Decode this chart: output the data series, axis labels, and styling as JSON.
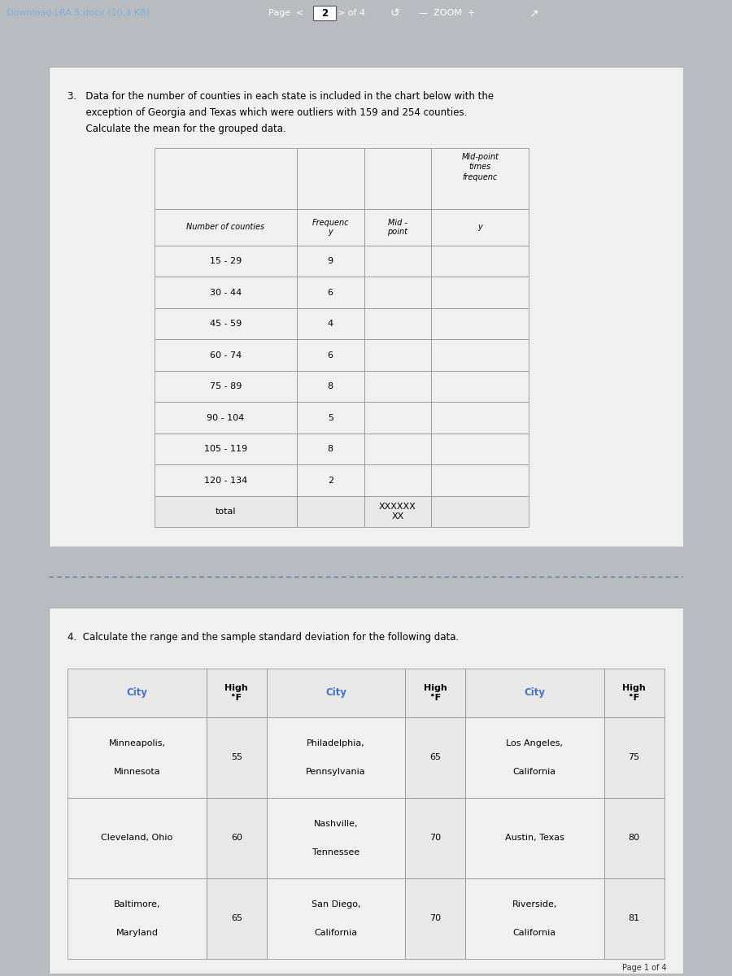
{
  "page_bg": "#b8bcc0",
  "panel_bg": "#f0f0f0",
  "panel_bg2": "#f0f0f0",
  "toolbar_bg": "#1e2530",
  "toolbar_text": "Download LRA 5.docx (20.3 KB)",
  "question3_lines": [
    "3.   Data for the number of counties in each state is included in the chart below with the",
    "      exception of Georgia and Texas which were outliers with 159 and 254 counties.",
    "      Calculate the mean for the grouped data."
  ],
  "question4_text": "4.  Calculate the range and the sample standard deviation for the following data.",
  "table1_col_labels": [
    "Number of counties",
    "Frequenc\ny",
    "Mid -\npoint",
    "Mid-point\ntimes\nfrequenc\ny"
  ],
  "table1_rows": [
    [
      "15 - 29",
      "9",
      "",
      ""
    ],
    [
      "30 - 44",
      "6",
      "",
      ""
    ],
    [
      "45 - 59",
      "4",
      "",
      ""
    ],
    [
      "60 - 74",
      "6",
      "",
      ""
    ],
    [
      "75 - 89",
      "8",
      "",
      ""
    ],
    [
      "90 - 104",
      "5",
      "",
      ""
    ],
    [
      "105 - 119",
      "8",
      "",
      ""
    ],
    [
      "120 - 134",
      "2",
      "",
      ""
    ],
    [
      "total",
      "",
      "XXXXXX\nXX",
      ""
    ]
  ],
  "table2_header": [
    "City",
    "High\n°F",
    "City",
    "High\n°F",
    "City",
    "High\n°F"
  ],
  "table2_rows": [
    [
      "Minneapolis,\nMinnesota",
      "55",
      "Philadelphia,\nPennsylvania",
      "65",
      "Los Angeles,\nCalifornia",
      "75"
    ],
    [
      "Cleveland, Ohio",
      "60",
      "Nashville,\nTennessee",
      "70",
      "Austin, Texas",
      "80"
    ],
    [
      "Baltimore,\nMaryland",
      "65",
      "San Diego,\nCalifornia",
      "70",
      "Riverside,\nCalifornia",
      "81"
    ]
  ],
  "header2_city_color": "#4472c4",
  "header2_temp_color": "#d9d9d9",
  "header2_city_text_color": "#4472c4",
  "header2_temp_text_color": "#000000",
  "cell_bg": "#ffffff",
  "cell_shaded": "#d9d9d9",
  "border_color": "#888888",
  "text_color": "#000000",
  "dashed_line_color": "#5577aa",
  "link_color": "#4472c4"
}
